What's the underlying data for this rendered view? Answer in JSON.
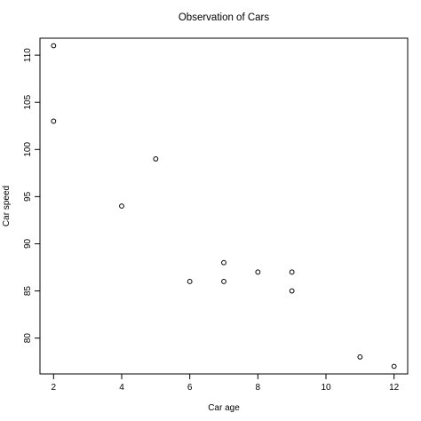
{
  "chart_data": {
    "type": "scatter",
    "title": "Observation of Cars",
    "xlabel": "Car age",
    "ylabel": "Car speed",
    "xlim": [
      1.6,
      12.4
    ],
    "ylim": [
      76.2,
      111.8
    ],
    "x_ticks": [
      2,
      4,
      6,
      8,
      10,
      12
    ],
    "y_ticks": [
      80,
      85,
      90,
      95,
      100,
      105,
      110
    ],
    "grid": false,
    "legend": "none",
    "point_color": "#000000",
    "series": [
      {
        "x": [
          2,
          2,
          4,
          5,
          6,
          7,
          7,
          8,
          9,
          9,
          11,
          12
        ],
        "y": [
          111,
          103,
          94,
          99,
          86,
          88,
          86,
          87,
          87,
          85,
          78,
          77
        ]
      }
    ]
  }
}
